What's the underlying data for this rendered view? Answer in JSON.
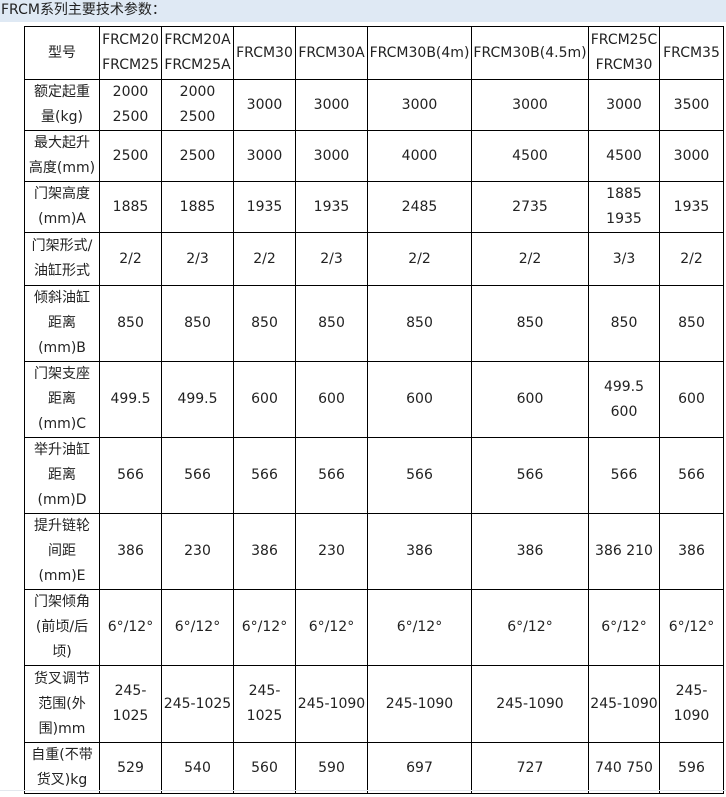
{
  "title": "FRCM系列主要技术参数：",
  "table": {
    "rows": [
      [
        "型号",
        "FRCM20\nFRCM25",
        "FRCM20A\nFRCM25A",
        "FRCM30",
        "FRCM30A",
        "FRCM30B(4m)",
        "FRCM30B(4.5m)",
        "FRCM25C\nFRCM30",
        "FRCM35"
      ],
      [
        "额定起重\n量(kg)",
        "2000\n2500",
        "2000\n2500",
        "3000",
        "3000",
        "3000",
        "3000",
        "3000",
        "3500"
      ],
      [
        "最大起升\n高度(mm)",
        "2500",
        "2500",
        "3000",
        "3000",
        "4000",
        "4500",
        "4500",
        "3000"
      ],
      [
        "门架高度\n(mm)A",
        "1885",
        "1885",
        "1935",
        "1935",
        "2485",
        "2735",
        "1885\n1935",
        "1935"
      ],
      [
        "门架形式/\n油缸形式",
        "2/2",
        "2/3",
        "2/2",
        "2/3",
        "2/2",
        "2/2",
        "3/3",
        "2/2"
      ],
      [
        "倾斜油缸\n距离\n(mm)B",
        "850",
        "850",
        "850",
        "850",
        "850",
        "850",
        "850",
        "850"
      ],
      [
        "门架支座\n距离\n(mm)C",
        "499.5",
        "499.5",
        "600",
        "600",
        "600",
        "600",
        "499.5 600",
        "600"
      ],
      [
        "举升油缸\n距离\n(mm)D",
        "566",
        "566",
        "566",
        "566",
        "566",
        "566",
        "566",
        "566"
      ],
      [
        "提升链轮\n间距\n(mm)E",
        "386",
        "230",
        "386",
        "230",
        "386",
        "386",
        "386  210",
        "386"
      ],
      [
        "门架倾角\n(前顷/后\n顷)",
        "6°/12°",
        "6°/12°",
        "6°/12°",
        "6°/12°",
        "6°/12°",
        "6°/12°",
        "6°/12°",
        "6°/12°"
      ],
      [
        "货叉调节\n范围(外\n围)mm",
        "245-\n1025",
        "245-1025",
        "245-\n1025",
        "245-1090",
        "245-1090",
        "245-1090",
        "245-1090",
        "245-\n1090"
      ],
      [
        "自重(不带\n货叉)kg",
        "529",
        "540",
        "560",
        "590",
        "697",
        "727",
        "740  750",
        "596"
      ]
    ]
  }
}
